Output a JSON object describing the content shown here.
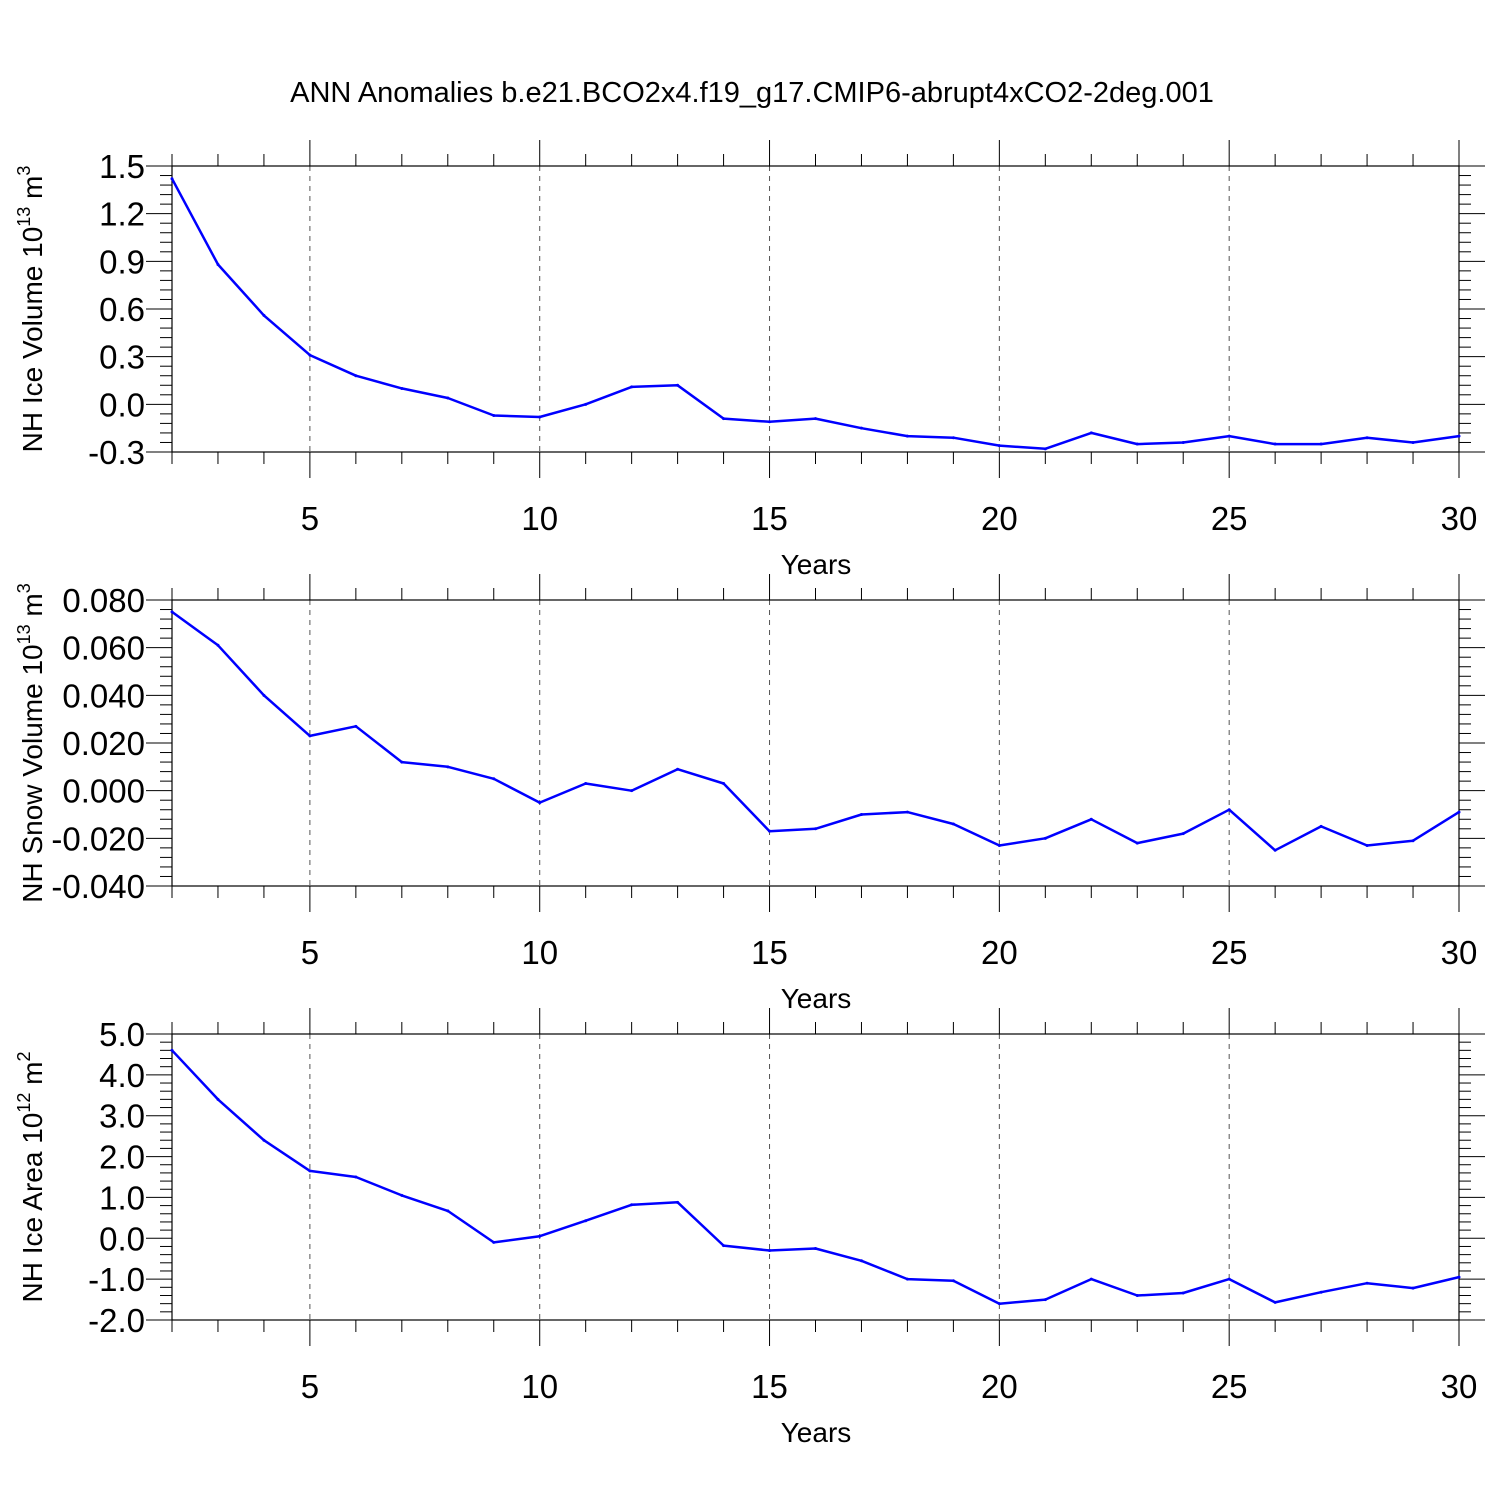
{
  "title": "ANN Anomalies b.e21.BCO2x4.f19_g17.CMIP6-abrupt4xCO2-2deg.001",
  "colors": {
    "series": "#0000ff",
    "axis": "#000000",
    "grid": "#555555"
  },
  "chart_data": [
    {
      "type": "line",
      "ylabel_main": "NH Ice Volume 10",
      "ylabel_exp": "13",
      "ylabel_unit": " m",
      "ylabel_unit_exp": "3",
      "xlabel": "Years",
      "xlim": [
        2,
        30
      ],
      "ylim": [
        -0.3,
        1.5
      ],
      "x_ticks": [
        5,
        10,
        15,
        20,
        25,
        30
      ],
      "y_ticks": [
        "-0.3",
        "0.0",
        "0.3",
        "0.6",
        "0.9",
        "1.2",
        "1.5"
      ],
      "y_tick_values": [
        -0.3,
        0.0,
        0.3,
        0.6,
        0.9,
        1.2,
        1.5
      ],
      "grid": "vertical dashed at major x ticks",
      "x": [
        2,
        3,
        4,
        5,
        6,
        7,
        8,
        9,
        10,
        11,
        12,
        13,
        14,
        15,
        16,
        17,
        18,
        19,
        20,
        21,
        22,
        23,
        24,
        25,
        26,
        27,
        28,
        29,
        30
      ],
      "values": [
        1.42,
        0.88,
        0.56,
        0.31,
        0.18,
        0.1,
        0.04,
        -0.07,
        -0.08,
        0.0,
        0.11,
        0.12,
        -0.09,
        -0.11,
        -0.09,
        -0.15,
        -0.2,
        -0.21,
        -0.26,
        -0.28,
        -0.18,
        -0.25,
        -0.24,
        -0.2,
        -0.25,
        -0.25,
        -0.21,
        -0.24,
        -0.2
      ]
    },
    {
      "type": "line",
      "ylabel_main": "NH Snow Volume 10",
      "ylabel_exp": "13",
      "ylabel_unit": " m",
      "ylabel_unit_exp": "3",
      "xlabel": "Years",
      "xlim": [
        2,
        30
      ],
      "ylim": [
        -0.04,
        0.08
      ],
      "x_ticks": [
        5,
        10,
        15,
        20,
        25,
        30
      ],
      "y_ticks": [
        "-0.040",
        "-0.020",
        "0.000",
        "0.020",
        "0.040",
        "0.060",
        "0.080"
      ],
      "y_tick_values": [
        -0.04,
        -0.02,
        0.0,
        0.02,
        0.04,
        0.06,
        0.08
      ],
      "grid": "vertical dashed at major x ticks",
      "x": [
        2,
        3,
        4,
        5,
        6,
        7,
        8,
        9,
        10,
        11,
        12,
        13,
        14,
        15,
        16,
        17,
        18,
        19,
        20,
        21,
        22,
        23,
        24,
        25,
        26,
        27,
        28,
        29,
        30
      ],
      "values": [
        0.075,
        0.061,
        0.04,
        0.023,
        0.027,
        0.012,
        0.01,
        0.005,
        -0.005,
        0.003,
        0.0,
        0.009,
        0.003,
        -0.017,
        -0.016,
        -0.01,
        -0.009,
        -0.014,
        -0.023,
        -0.02,
        -0.012,
        -0.022,
        -0.018,
        -0.008,
        -0.025,
        -0.015,
        -0.023,
        -0.021,
        -0.009
      ]
    },
    {
      "type": "line",
      "ylabel_main": "NH Ice Area 10",
      "ylabel_exp": "12",
      "ylabel_unit": " m",
      "ylabel_unit_exp": "2",
      "xlabel": "Years",
      "xlim": [
        2,
        30
      ],
      "ylim": [
        -2.0,
        5.0
      ],
      "x_ticks": [
        5,
        10,
        15,
        20,
        25,
        30
      ],
      "y_ticks": [
        "-2.0",
        "-1.0",
        "0.0",
        "1.0",
        "2.0",
        "3.0",
        "4.0",
        "5.0"
      ],
      "y_tick_values": [
        -2.0,
        -1.0,
        0.0,
        1.0,
        2.0,
        3.0,
        4.0,
        5.0
      ],
      "grid": "vertical dashed at major x ticks",
      "x": [
        2,
        3,
        4,
        5,
        6,
        7,
        8,
        9,
        10,
        11,
        12,
        13,
        14,
        15,
        16,
        17,
        18,
        19,
        20,
        21,
        22,
        23,
        24,
        25,
        26,
        27,
        28,
        29,
        30
      ],
      "values": [
        4.6,
        3.4,
        2.4,
        1.65,
        1.5,
        1.05,
        0.67,
        -0.1,
        0.05,
        0.43,
        0.82,
        0.88,
        -0.18,
        -0.3,
        -0.25,
        -0.55,
        -1.0,
        -1.04,
        -1.6,
        -1.5,
        -1.0,
        -1.4,
        -1.34,
        -1.0,
        -1.57,
        -1.32,
        -1.1,
        -1.22,
        -0.95
      ]
    }
  ]
}
